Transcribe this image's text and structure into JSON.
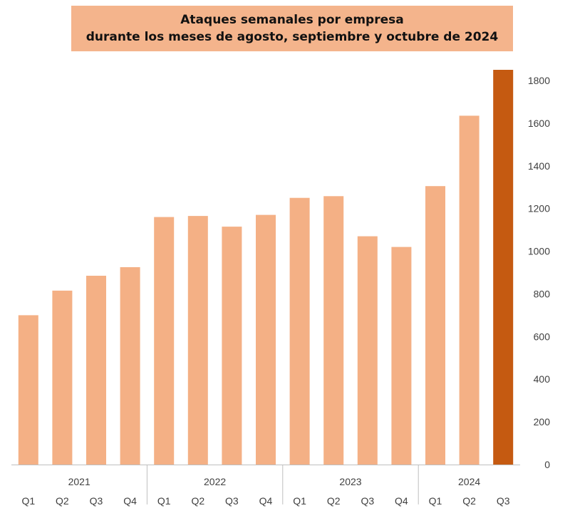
{
  "title": {
    "line1": "Ataques semanales por empresa",
    "line2": "durante los meses de agosto, septiembre y octubre de 2024"
  },
  "colors": {
    "bar": "#f4b085",
    "highlight": "#c55a11",
    "title_bg": "#f4b48c",
    "axis": "#bfbfbf",
    "text": "#404040"
  },
  "chart_data": {
    "type": "bar",
    "title": "Ataques semanales por empresa durante los meses de agosto, septiembre y octubre de 2024",
    "categories": [
      "Q1",
      "Q2",
      "Q3",
      "Q4",
      "Q1",
      "Q2",
      "Q3",
      "Q4",
      "Q1",
      "Q2",
      "Q3",
      "Q4",
      "Q1",
      "Q2",
      "Q3"
    ],
    "groups": [
      {
        "label": "2021",
        "start": 0,
        "end": 3
      },
      {
        "label": "2022",
        "start": 4,
        "end": 7
      },
      {
        "label": "2023",
        "start": 8,
        "end": 11
      },
      {
        "label": "2024",
        "start": 12,
        "end": 14
      }
    ],
    "values": [
      700,
      815,
      885,
      925,
      1160,
      1165,
      1115,
      1170,
      1250,
      1258,
      1070,
      1020,
      1305,
      1635,
      1850
    ],
    "highlight_index": 14,
    "ylim": [
      0,
      1850
    ],
    "yticks": [
      0,
      200,
      400,
      600,
      800,
      1000,
      1200,
      1400,
      1600,
      1800
    ],
    "y_axis_position": "right",
    "grid": false,
    "xlabel": "",
    "ylabel": ""
  }
}
